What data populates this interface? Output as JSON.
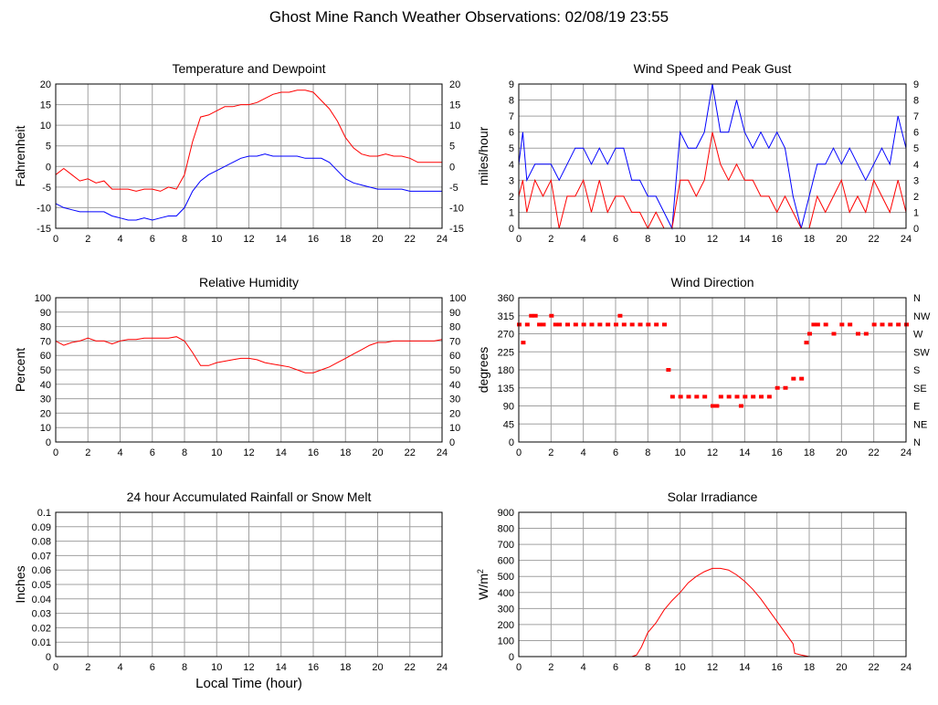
{
  "title": "Ghost Mine Ranch Weather Observations: 02/08/19 23:55",
  "xlabel_common": "Local Time (hour)",
  "colors": {
    "red": "#ff0000",
    "blue": "#0000ff",
    "grid": "#a0a0a0",
    "frame": "#000000"
  },
  "chart_data": [
    {
      "id": "temp",
      "type": "line",
      "title": "Temperature and Dewpoint",
      "ylabel": "Fahrenheit",
      "xlim": [
        0,
        24
      ],
      "ylim": [
        -15,
        20
      ],
      "xticks": [
        0,
        2,
        4,
        6,
        8,
        10,
        12,
        14,
        16,
        18,
        20,
        22,
        24
      ],
      "yticks": [
        -15,
        -10,
        -5,
        0,
        5,
        10,
        15,
        20
      ],
      "right_ticks": [
        "-15",
        "-10",
        "-5",
        "0",
        "5",
        "10",
        "15",
        "20"
      ],
      "series": [
        {
          "color": "#ff0000",
          "x": [
            0,
            0.5,
            1,
            1.5,
            2,
            2.5,
            3,
            3.5,
            4,
            4.5,
            5,
            5.5,
            6,
            6.5,
            7,
            7.5,
            8,
            8.5,
            9,
            9.5,
            10,
            10.5,
            11,
            11.5,
            12,
            12.5,
            13,
            13.5,
            14,
            14.5,
            15,
            15.5,
            16,
            16.5,
            17,
            17.5,
            18,
            18.5,
            19,
            19.5,
            20,
            20.5,
            21,
            21.5,
            22,
            22.5,
            23,
            23.5,
            24
          ],
          "values": [
            -2,
            -0.5,
            -2,
            -3.5,
            -3,
            -4,
            -3.5,
            -5.5,
            -5.5,
            -5.5,
            -6,
            -5.5,
            -5.5,
            -6,
            -5,
            -5.5,
            -2,
            6,
            12,
            12.5,
            13.5,
            14.5,
            14.5,
            15,
            15,
            15.5,
            16.5,
            17.5,
            18,
            18,
            18.5,
            18.5,
            18,
            16,
            14,
            11,
            7,
            4.5,
            3,
            2.5,
            2.5,
            3,
            2.5,
            2.5,
            2,
            1,
            1,
            1,
            1
          ]
        },
        {
          "color": "#0000ff",
          "x": [
            0,
            0.5,
            1,
            1.5,
            2,
            2.5,
            3,
            3.5,
            4,
            4.5,
            5,
            5.5,
            6,
            6.5,
            7,
            7.5,
            8,
            8.5,
            9,
            9.5,
            10,
            10.5,
            11,
            11.5,
            12,
            12.5,
            13,
            13.5,
            14,
            14.5,
            15,
            15.5,
            16,
            16.5,
            17,
            17.5,
            18,
            18.5,
            19,
            19.5,
            20,
            20.5,
            21,
            21.5,
            22,
            22.5,
            23,
            23.5,
            24
          ],
          "values": [
            -9,
            -10,
            -10.5,
            -11,
            -11,
            -11,
            -11,
            -12,
            -12.5,
            -13,
            -13,
            -12.5,
            -13,
            -12.5,
            -12,
            -12,
            -10,
            -6,
            -3.5,
            -2,
            -1,
            0,
            1,
            2,
            2.5,
            2.5,
            3,
            2.5,
            2.5,
            2.5,
            2.5,
            2,
            2,
            2,
            1,
            -1,
            -3,
            -4,
            -4.5,
            -5,
            -5.5,
            -5.5,
            -5.5,
            -5.5,
            -6,
            -6,
            -6,
            -6,
            -6
          ]
        }
      ]
    },
    {
      "id": "wind",
      "type": "line",
      "title": "Wind Speed and Peak Gust",
      "ylabel": "miles/hour",
      "xlim": [
        0,
        24
      ],
      "ylim": [
        0,
        9
      ],
      "xticks": [
        0,
        2,
        4,
        6,
        8,
        10,
        12,
        14,
        16,
        18,
        20,
        22,
        24
      ],
      "yticks": [
        0,
        1,
        2,
        3,
        4,
        5,
        6,
        7,
        8,
        9
      ],
      "right_ticks": [
        "0",
        "1",
        "2",
        "3",
        "4",
        "5",
        "6",
        "7",
        "8",
        "9"
      ],
      "series": [
        {
          "color": "#0000ff",
          "x": [
            0,
            0.25,
            0.5,
            1,
            1.5,
            2,
            2.5,
            3,
            3.5,
            4,
            4.5,
            5,
            5.5,
            6,
            6.5,
            7,
            7.5,
            8,
            8.5,
            9,
            9.5,
            10,
            10.5,
            11,
            11.5,
            12,
            12.5,
            13,
            13.5,
            14,
            14.5,
            15,
            15.5,
            16,
            16.5,
            17,
            17.5,
            18,
            18.5,
            19,
            19.5,
            20,
            20.5,
            21,
            21.5,
            22,
            22.5,
            23,
            23.5,
            24
          ],
          "values": [
            4,
            6,
            3,
            4,
            4,
            4,
            3,
            4,
            5,
            5,
            4,
            5,
            4,
            5,
            5,
            3,
            3,
            2,
            2,
            1,
            0,
            6,
            5,
            5,
            6,
            9,
            6,
            6,
            8,
            6,
            5,
            6,
            5,
            6,
            5,
            2,
            0,
            2,
            4,
            4,
            5,
            4,
            5,
            4,
            3,
            4,
            5,
            4,
            7,
            5
          ]
        },
        {
          "color": "#ff0000",
          "x": [
            0,
            0.25,
            0.5,
            1,
            1.5,
            2,
            2.5,
            3,
            3.5,
            4,
            4.5,
            5,
            5.5,
            6,
            6.5,
            7,
            7.5,
            8,
            8.5,
            9,
            9.5,
            10,
            10.5,
            11,
            11.5,
            12,
            12.5,
            13,
            13.5,
            14,
            14.5,
            15,
            15.5,
            16,
            16.5,
            17,
            17.5,
            18,
            18.5,
            19,
            19.5,
            20,
            20.5,
            21,
            21.5,
            22,
            22.5,
            23,
            23.5,
            24
          ],
          "values": [
            2,
            3,
            1,
            3,
            2,
            3,
            0,
            2,
            2,
            3,
            1,
            3,
            1,
            2,
            2,
            1,
            1,
            0,
            1,
            0,
            0,
            3,
            3,
            2,
            3,
            6,
            4,
            3,
            4,
            3,
            3,
            2,
            2,
            1,
            2,
            1,
            0,
            0,
            2,
            1,
            2,
            3,
            1,
            2,
            1,
            3,
            2,
            1,
            3,
            1
          ]
        }
      ]
    },
    {
      "id": "rh",
      "type": "line",
      "title": "Relative Humidity",
      "ylabel": "Percent",
      "xlim": [
        0,
        24
      ],
      "ylim": [
        0,
        100
      ],
      "xticks": [
        0,
        2,
        4,
        6,
        8,
        10,
        12,
        14,
        16,
        18,
        20,
        22,
        24
      ],
      "yticks": [
        0,
        10,
        20,
        30,
        40,
        50,
        60,
        70,
        80,
        90,
        100
      ],
      "right_ticks": [
        "0",
        "10",
        "20",
        "30",
        "40",
        "50",
        "60",
        "70",
        "80",
        "90",
        "100"
      ],
      "series": [
        {
          "color": "#ff0000",
          "x": [
            0,
            0.5,
            1,
            1.5,
            2,
            2.5,
            3,
            3.5,
            4,
            4.5,
            5,
            5.5,
            6,
            6.5,
            7,
            7.5,
            8,
            8.5,
            9,
            9.5,
            10,
            10.5,
            11,
            11.5,
            12,
            12.5,
            13,
            13.5,
            14,
            14.5,
            15,
            15.5,
            16,
            16.5,
            17,
            17.5,
            18,
            18.5,
            19,
            19.5,
            20,
            20.5,
            21,
            21.5,
            22,
            22.5,
            23,
            23.5,
            24
          ],
          "values": [
            70,
            67,
            69,
            70,
            72,
            70,
            70,
            68,
            70,
            71,
            71,
            72,
            72,
            72,
            72,
            73,
            70,
            62,
            53,
            53,
            55,
            56,
            57,
            58,
            58,
            57,
            55,
            54,
            53,
            52,
            50,
            48,
            48,
            50,
            52,
            55,
            58,
            61,
            64,
            67,
            69,
            69,
            70,
            70,
            70,
            70,
            70,
            70,
            71
          ]
        }
      ]
    },
    {
      "id": "wdir",
      "type": "scatter",
      "title": "Wind Direction",
      "ylabel": "degrees",
      "xlim": [
        0,
        24
      ],
      "ylim": [
        0,
        360
      ],
      "xticks": [
        0,
        2,
        4,
        6,
        8,
        10,
        12,
        14,
        16,
        18,
        20,
        22,
        24
      ],
      "yticks": [
        0,
        45,
        90,
        135,
        180,
        225,
        270,
        315,
        360
      ],
      "right_ticks": [
        "N",
        "NE",
        "E",
        "SE",
        "S",
        "SW",
        "W",
        "NW",
        "N"
      ],
      "series": [
        {
          "color": "#ff0000",
          "x": [
            0,
            0.25,
            0.5,
            0.75,
            1,
            1.25,
            1.5,
            2,
            2.25,
            2.5,
            3,
            3.5,
            4,
            4.5,
            5,
            5.5,
            6,
            6.25,
            6.5,
            7,
            7.5,
            8,
            8.5,
            9,
            9.25,
            9.5,
            10,
            10.5,
            11,
            11.5,
            12,
            12.25,
            12.5,
            13,
            13.5,
            13.75,
            14,
            14.5,
            15,
            15.5,
            16,
            16.5,
            17,
            17.5,
            17.8,
            18,
            18.25,
            18.5,
            19,
            19.5,
            20,
            20.5,
            21,
            21.5,
            22,
            22.5,
            23,
            23.5,
            24
          ],
          "values": [
            293,
            248,
            293,
            315,
            315,
            293,
            293,
            315,
            293,
            293,
            293,
            293,
            293,
            293,
            293,
            293,
            293,
            315,
            293,
            293,
            293,
            293,
            293,
            293,
            180,
            113,
            113,
            113,
            113,
            113,
            90,
            90,
            113,
            113,
            113,
            90,
            113,
            113,
            113,
            113,
            135,
            135,
            158,
            158,
            248,
            270,
            293,
            293,
            293,
            270,
            293,
            293,
            270,
            270,
            293,
            293,
            293,
            293,
            293
          ]
        }
      ]
    },
    {
      "id": "rain",
      "type": "line",
      "title": "24 hour Accumulated Rainfall or Snow Melt",
      "ylabel": "Inches",
      "xlabel": "Local Time (hour)",
      "xlim": [
        0,
        24
      ],
      "ylim": [
        0,
        0.1
      ],
      "xticks": [
        0,
        2,
        4,
        6,
        8,
        10,
        12,
        14,
        16,
        18,
        20,
        22,
        24
      ],
      "yticks": [
        0,
        0.01,
        0.02,
        0.03,
        0.04,
        0.05,
        0.06,
        0.07,
        0.08,
        0.09,
        0.1
      ],
      "right_ticks": [],
      "series": [
        {
          "color": "#ff0000",
          "x": [
            0,
            24
          ],
          "values": [
            0,
            0
          ]
        }
      ]
    },
    {
      "id": "solar",
      "type": "line",
      "title": "Solar Irradiance",
      "ylabel": "W/m",
      "ylabel_sup": "2",
      "xlim": [
        0,
        24
      ],
      "ylim": [
        0,
        900
      ],
      "xticks": [
        0,
        2,
        4,
        6,
        8,
        10,
        12,
        14,
        16,
        18,
        20,
        22,
        24
      ],
      "yticks": [
        0,
        100,
        200,
        300,
        400,
        500,
        600,
        700,
        800,
        900
      ],
      "right_ticks": [],
      "series": [
        {
          "color": "#ff0000",
          "x": [
            0,
            7,
            7.3,
            7.6,
            8,
            8.5,
            9,
            9.5,
            10,
            10.5,
            11,
            11.5,
            12,
            12.5,
            13,
            13.5,
            14,
            14.5,
            15,
            15.5,
            16,
            16.5,
            17,
            17.1,
            17.5,
            18,
            24
          ],
          "values": [
            0,
            0,
            10,
            60,
            150,
            210,
            290,
            350,
            400,
            460,
            500,
            530,
            550,
            550,
            540,
            510,
            470,
            420,
            360,
            290,
            220,
            150,
            80,
            20,
            10,
            0,
            0
          ]
        }
      ]
    }
  ]
}
